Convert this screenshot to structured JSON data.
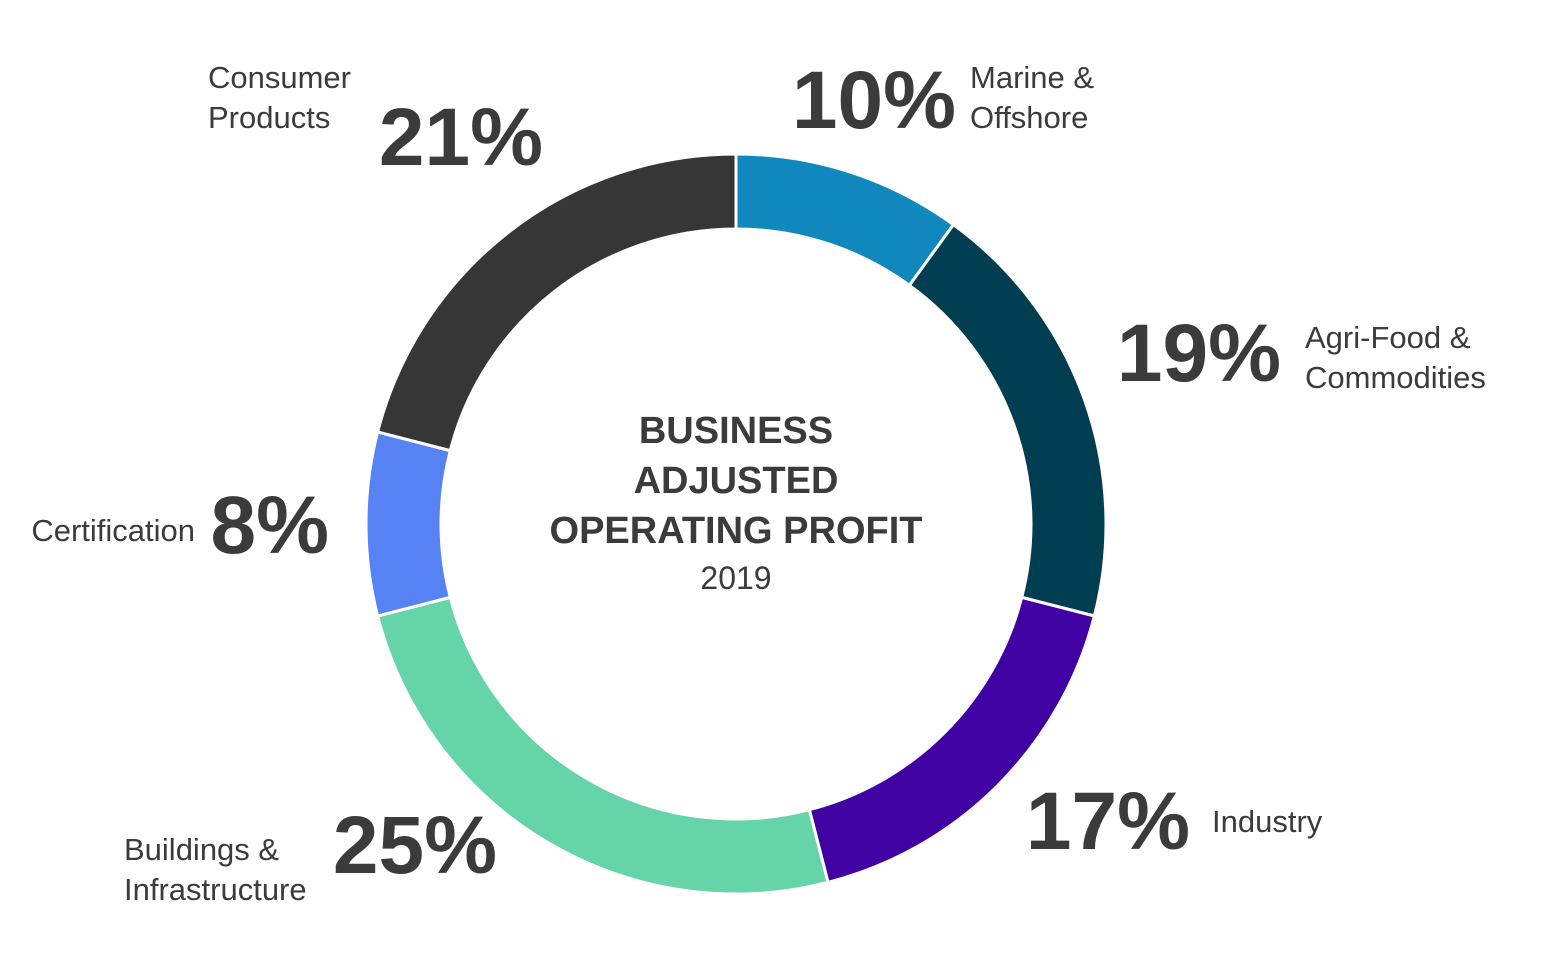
{
  "chart_data": {
    "type": "pie",
    "variant": "donut",
    "title_lines": [
      "BUSINESS",
      "ADJUSTED",
      "OPERATING PROFIT"
    ],
    "subtitle": "2019",
    "series": [
      {
        "name": "Marine & Offshore",
        "label_lines": [
          "Marine &",
          "Offshore"
        ],
        "value": 10,
        "value_label": "10%",
        "color": "#1188bd"
      },
      {
        "name": "Agri-Food & Commodities",
        "label_lines": [
          "Agri-Food &",
          "Commodities"
        ],
        "value": 19,
        "value_label": "19%",
        "color": "#023e51"
      },
      {
        "name": "Industry",
        "label_lines": [
          "Industry"
        ],
        "value": 17,
        "value_label": "17%",
        "color": "#4102a4"
      },
      {
        "name": "Buildings & Infrastructure",
        "label_lines": [
          "Buildings &",
          "Infrastructure"
        ],
        "value": 25,
        "value_label": "25%",
        "color": "#65d4a8"
      },
      {
        "name": "Certification",
        "label_lines": [
          "Certification"
        ],
        "value": 8,
        "value_label": "8%",
        "color": "#5782f4"
      },
      {
        "name": "Consumer Products",
        "label_lines": [
          "Consumer",
          "Products"
        ],
        "value": 21,
        "value_label": "21%",
        "color": "#363636"
      }
    ]
  }
}
